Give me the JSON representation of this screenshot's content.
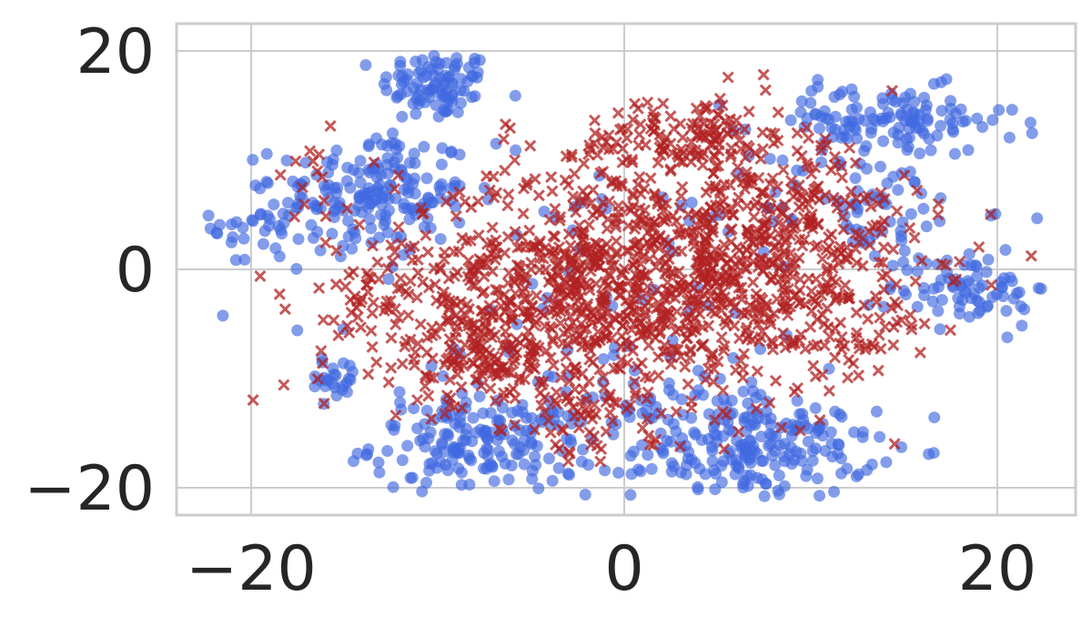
{
  "chart_data": {
    "type": "scatter",
    "title": "",
    "xlabel": "",
    "ylabel": "",
    "xlim": [
      -24,
      24.2
    ],
    "ylim": [
      -22.5,
      22.5
    ],
    "xticks": [
      -20,
      0,
      20
    ],
    "yticks": [
      -20,
      0,
      20
    ],
    "xtick_labels": [
      "−20",
      "0",
      "20"
    ],
    "ytick_labels": [
      "−20",
      "0",
      "20"
    ],
    "grid": true,
    "legend": "none",
    "colors": {
      "blue": "#4169e1",
      "red": "#b22222"
    },
    "series": [
      {
        "marker": "circle",
        "color": "#4169e1",
        "alpha": 0.65,
        "clusters": [
          {
            "cx": -10,
            "cy": 17,
            "sx": 1.5,
            "sy": 1.5,
            "n": 90
          },
          {
            "cx": -13.5,
            "cy": 7,
            "sx": 2.6,
            "sy": 3,
            "n": 180
          },
          {
            "cx": -19.5,
            "cy": 4,
            "sx": 1.3,
            "sy": 2,
            "n": 35
          },
          {
            "cx": -15.5,
            "cy": -10,
            "sx": 0.8,
            "sy": 1,
            "n": 25
          },
          {
            "cx": -7.5,
            "cy": -16,
            "sx": 3,
            "sy": 2.2,
            "n": 180
          },
          {
            "cx": 7,
            "cy": -16.5,
            "sx": 3.2,
            "sy": 2.2,
            "n": 200
          },
          {
            "cx": 14,
            "cy": 13.5,
            "sx": 3.5,
            "sy": 1.6,
            "n": 130
          },
          {
            "cx": 18.5,
            "cy": -1.5,
            "sx": 2.2,
            "sy": 1.8,
            "n": 80
          },
          {
            "cx": 13,
            "cy": 5.5,
            "sx": 3,
            "sy": 2.5,
            "n": 70
          },
          {
            "cx": 3,
            "cy": -12,
            "sx": 3,
            "sy": 2,
            "n": 40
          },
          {
            "cx": -2,
            "cy": -3,
            "sx": 8,
            "sy": 7,
            "n": 70
          }
        ]
      },
      {
        "marker": "x",
        "color": "#b22222",
        "alpha": 0.75,
        "clusters": [
          {
            "cx": 1,
            "cy": -1,
            "sx": 6.5,
            "sy": 5.2,
            "n": 1100
          },
          {
            "cx": 3.5,
            "cy": 12,
            "sx": 3,
            "sy": 2,
            "n": 150
          },
          {
            "cx": -7,
            "cy": -8,
            "sx": 3,
            "sy": 2.5,
            "n": 150
          },
          {
            "cx": 9,
            "cy": 5,
            "sx": 3,
            "sy": 3,
            "n": 120
          },
          {
            "cx": -14,
            "cy": -3,
            "sx": 2,
            "sy": 3,
            "n": 40
          },
          {
            "cx": -2,
            "cy": -15,
            "sx": 3,
            "sy": 2,
            "n": 40
          },
          {
            "cx": 13,
            "cy": -3,
            "sx": 2,
            "sy": 4,
            "n": 50
          },
          {
            "cx": -16,
            "cy": 8,
            "sx": 1.5,
            "sy": 2,
            "n": 15
          }
        ]
      }
    ]
  }
}
